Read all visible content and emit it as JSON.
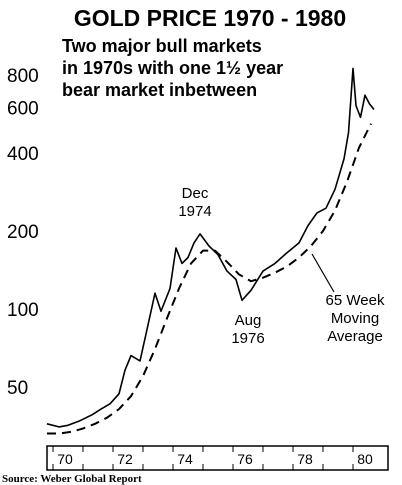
{
  "chart_data": {
    "type": "line",
    "title": "GOLD PRICE 1970 - 1980",
    "subtitle_lines": [
      "Two major bull markets",
      "in 1970s with one 1½ year",
      "bear market inbetween"
    ],
    "y_scale": "log",
    "ylim": [
      32,
      900
    ],
    "xlim": [
      1969.8,
      1980.9
    ],
    "y_ticks": [
      50,
      100,
      200,
      400,
      600,
      800
    ],
    "y_tick_labels": [
      "50",
      "100",
      "200",
      "400",
      "600",
      "800"
    ],
    "x_tick_labels": [
      "70",
      "72",
      "74",
      "76",
      "78",
      "80"
    ],
    "x_tick_values": [
      1970,
      1972,
      1974,
      1976,
      1978,
      1980
    ],
    "series": [
      {
        "style": "solid",
        "x": [
          1969.8,
          1970.2,
          1970.5,
          1970.9,
          1971.3,
          1971.6,
          1971.9,
          1972.2,
          1972.4,
          1972.6,
          1972.9,
          1973.1,
          1973.4,
          1973.6,
          1973.9,
          1974.1,
          1974.3,
          1974.5,
          1974.7,
          1974.9,
          1975.2,
          1975.5,
          1975.8,
          1976.1,
          1976.3,
          1976.6,
          1977.0,
          1977.4,
          1977.8,
          1978.2,
          1978.5,
          1978.8,
          1979.1,
          1979.4,
          1979.7,
          1979.85,
          1980.0,
          1980.1,
          1980.25,
          1980.4,
          1980.55,
          1980.7
        ],
        "y": [
          36,
          35,
          35.5,
          37,
          39,
          41,
          43,
          47,
          58,
          66,
          63,
          80,
          115,
          98,
          120,
          172,
          150,
          158,
          180,
          195,
          175,
          162,
          140,
          130,
          108,
          118,
          140,
          150,
          165,
          180,
          210,
          235,
          245,
          290,
          380,
          480,
          850,
          610,
          550,
          670,
          620,
          590
        ]
      },
      {
        "style": "dashed",
        "x": [
          1969.8,
          1970.2,
          1970.6,
          1971.0,
          1971.4,
          1971.8,
          1972.2,
          1972.6,
          1973.0,
          1973.4,
          1973.8,
          1974.2,
          1974.6,
          1975.0,
          1975.4,
          1975.8,
          1976.2,
          1976.6,
          1977.0,
          1977.4,
          1977.8,
          1978.2,
          1978.6,
          1979.0,
          1979.4,
          1979.8,
          1980.2,
          1980.6
        ],
        "y": [
          33,
          33,
          33.5,
          34.5,
          36,
          38,
          41,
          46,
          55,
          70,
          92,
          120,
          150,
          168,
          168,
          152,
          136,
          128,
          132,
          138,
          146,
          158,
          175,
          200,
          240,
          310,
          420,
          520
        ]
      }
    ],
    "annotations": [
      {
        "lines": [
          "Dec",
          "1974"
        ]
      },
      {
        "lines": [
          "Aug",
          "1976"
        ]
      },
      {
        "lines": [
          "65 Week",
          "Moving",
          "Average"
        ]
      }
    ],
    "source": "Source: Weber Global Report"
  }
}
